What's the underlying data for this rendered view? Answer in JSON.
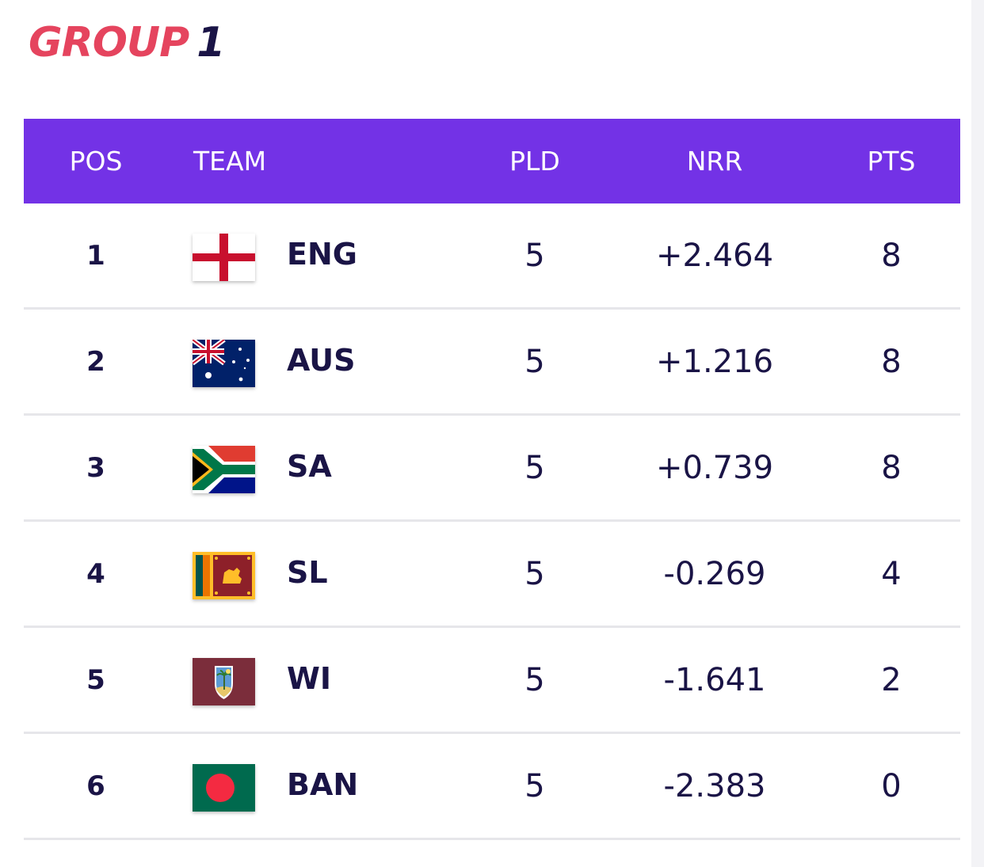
{
  "title": {
    "word": "GROUP",
    "number": "1"
  },
  "columns": {
    "pos": "POS",
    "team": "TEAM",
    "pld": "PLD",
    "nrr": "NRR",
    "pts": "PTS"
  },
  "colors": {
    "header_bg": "#7332e6",
    "title_accent": "#e5445e",
    "text": "#1a1446"
  },
  "rows": [
    {
      "pos": "1",
      "abbr": "ENG",
      "flag": "england-flag-icon",
      "pld": "5",
      "nrr": "+2.464",
      "pts": "8"
    },
    {
      "pos": "2",
      "abbr": "AUS",
      "flag": "australia-flag-icon",
      "pld": "5",
      "nrr": "+1.216",
      "pts": "8"
    },
    {
      "pos": "3",
      "abbr": "SA",
      "flag": "south-africa-flag-icon",
      "pld": "5",
      "nrr": "+0.739",
      "pts": "8"
    },
    {
      "pos": "4",
      "abbr": "SL",
      "flag": "sri-lanka-flag-icon",
      "pld": "5",
      "nrr": "-0.269",
      "pts": "4"
    },
    {
      "pos": "5",
      "abbr": "WI",
      "flag": "west-indies-flag-icon",
      "pld": "5",
      "nrr": "-1.641",
      "pts": "2"
    },
    {
      "pos": "6",
      "abbr": "BAN",
      "flag": "bangladesh-flag-icon",
      "pld": "5",
      "nrr": "-2.383",
      "pts": "0"
    }
  ]
}
